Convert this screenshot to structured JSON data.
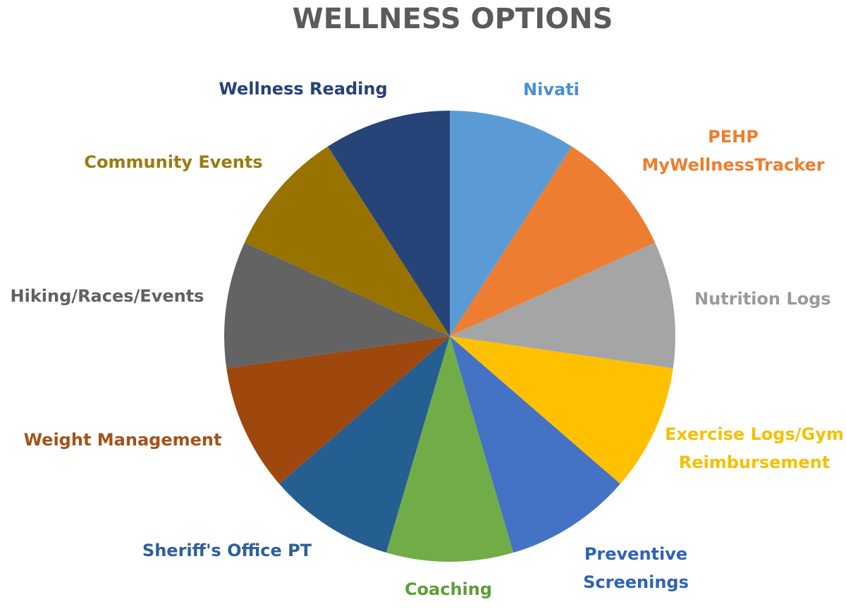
{
  "chart_data": {
    "type": "pie",
    "title": "WELLNESS OPTIONS",
    "start_angle_deg": 0,
    "direction": "clockwise",
    "slices": [
      {
        "label_lines": [
          "Nivati"
        ],
        "value": 1,
        "color": "#5B9BD5"
      },
      {
        "label_lines": [
          "PEHP",
          "MyWellnessTracker"
        ],
        "value": 1,
        "color": "#ED7D31"
      },
      {
        "label_lines": [
          "Nutrition Logs"
        ],
        "value": 1,
        "color": "#A5A5A5"
      },
      {
        "label_lines": [
          "Exercise Logs/Gym",
          "Reimbursement"
        ],
        "value": 1,
        "color": "#FFC000"
      },
      {
        "label_lines": [
          "Preventive",
          "Screenings"
        ],
        "value": 1,
        "color": "#4472C4"
      },
      {
        "label_lines": [
          "Coaching"
        ],
        "value": 1,
        "color": "#70AD47"
      },
      {
        "label_lines": [
          "Sheriff's Office PT"
        ],
        "value": 1,
        "color": "#255E91"
      },
      {
        "label_lines": [
          "Weight Management"
        ],
        "value": 1,
        "color": "#9E480E"
      },
      {
        "label_lines": [
          "Hiking/Races/Events"
        ],
        "value": 1,
        "color": "#636363"
      },
      {
        "label_lines": [
          "Community Events"
        ],
        "value": 1,
        "color": "#997300"
      },
      {
        "label_lines": [
          "Wellness Reading"
        ],
        "value": 1,
        "color": "#264478"
      }
    ],
    "label_colors": {
      "Nivati": "#4a8fd6",
      "PEHP": "#ee7d2e",
      "Nutrition Logs": "#9a9a9a",
      "Exercise Logs/Gym": "#f5c000",
      "Preventive": "#2f62b8",
      "Coaching": "#5d9e38",
      "Sheriff's Office PT": "#2c5f9c",
      "Weight Management": "#a4521a",
      "Hiking/Races/Events": "#616161",
      "Community Events": "#9a7a10",
      "Wellness Reading": "#254178"
    },
    "legend": "none"
  }
}
